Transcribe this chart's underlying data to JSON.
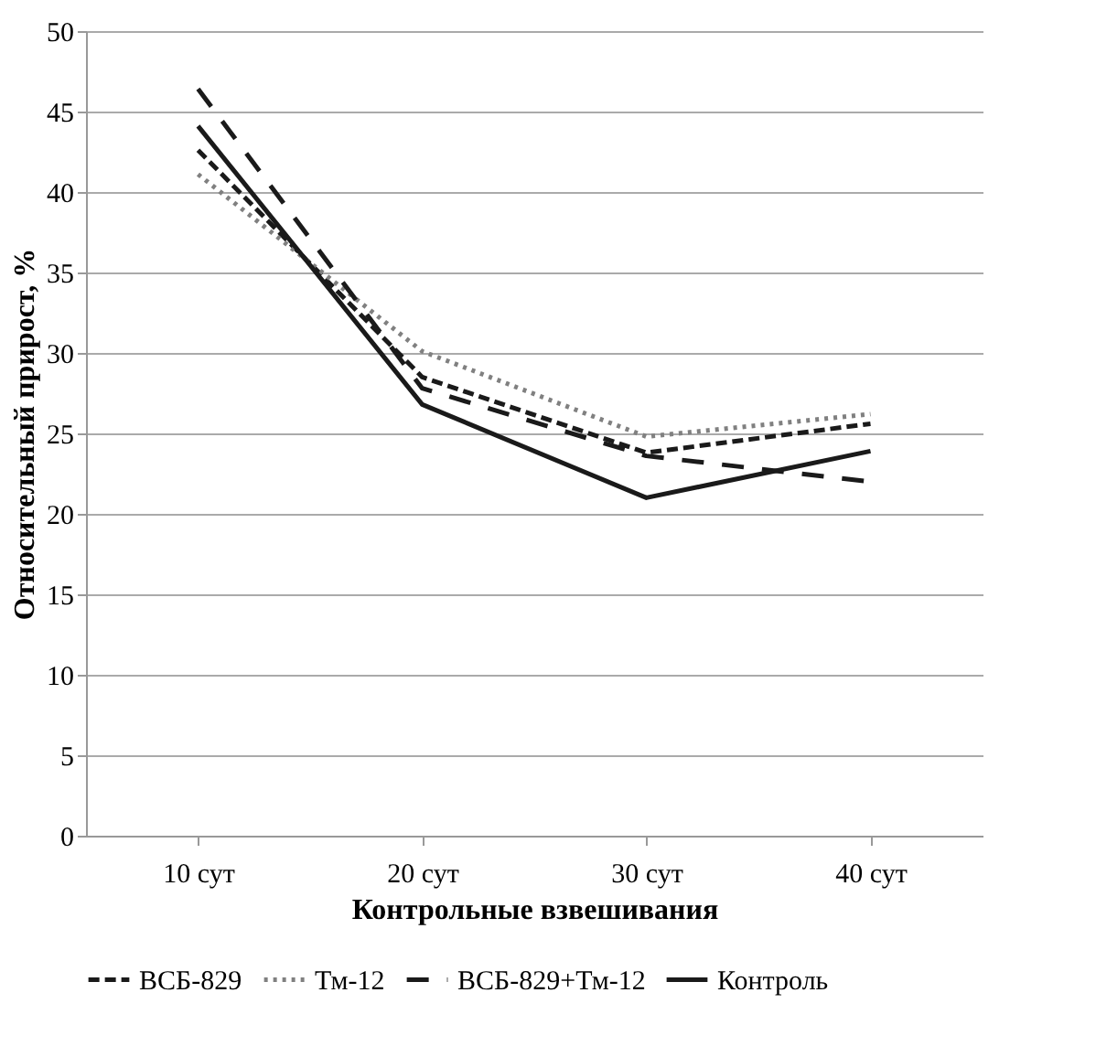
{
  "chart_data": {
    "type": "line",
    "xlabel": "Контрольные взвешивания",
    "ylabel": "Относительный прирост, %",
    "categories": [
      "10 сут",
      "20 сут",
      "30 сут",
      "40 сут"
    ],
    "series": [
      {
        "name": "ВСБ-829",
        "color": "#1a1a1a",
        "line_style": "dashed",
        "values": [
          42.6,
          28.5,
          23.8,
          25.6
        ]
      },
      {
        "name": "Тм-12",
        "color": "#808080",
        "line_style": "dotted",
        "values": [
          41.1,
          30.1,
          24.8,
          26.2
        ]
      },
      {
        "name": "ВСБ-829+Тм-12",
        "color": "#1a1a1a",
        "line_style": "longdash",
        "values": [
          46.4,
          27.8,
          23.6,
          22.0
        ]
      },
      {
        "name": "Контроль",
        "color": "#1a1a1a",
        "line_style": "solid",
        "values": [
          44.1,
          26.8,
          21.0,
          23.9
        ]
      }
    ],
    "ylim": [
      0,
      50
    ],
    "yticks": [
      0,
      5,
      10,
      15,
      20,
      25,
      30,
      35,
      40,
      45,
      50
    ],
    "grid": "y",
    "legend": "bottom",
    "marker": "none"
  }
}
